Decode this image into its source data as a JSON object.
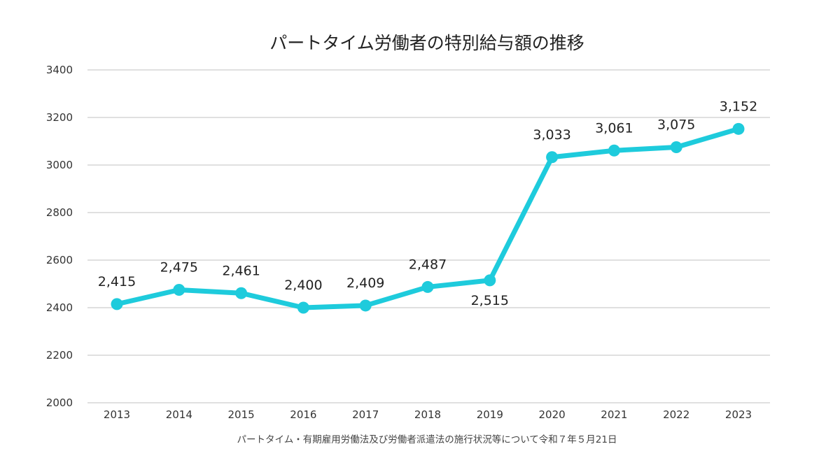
{
  "colors": {
    "line": "#1ecbdc",
    "grid": "#d6d6d6",
    "text": "#222222"
  },
  "chart_data": {
    "type": "line",
    "title": "パートタイム労働者の特別給与額の推移",
    "xlabel": "",
    "ylabel": "",
    "source": "パートタイム・有期雇用労働法及び労働者派遣法の施行状況等について令和７年５月21日",
    "categories": [
      "2013",
      "2014",
      "2015",
      "2016",
      "2017",
      "2018",
      "2019",
      "2020",
      "2021",
      "2022",
      "2023"
    ],
    "series": [
      {
        "name": "特別給与額",
        "values": [
          2415,
          2475,
          2461,
          2400,
          2409,
          2487,
          2515,
          3033,
          3061,
          3075,
          3152
        ],
        "labels": [
          "2,415",
          "2,475",
          "2,461",
          "2,400",
          "2,409",
          "2,487",
          "2,515",
          "3,033",
          "3,061",
          "3,075",
          "3,152"
        ]
      }
    ],
    "ylim": [
      2000,
      3400
    ],
    "yticks": [
      2000,
      2200,
      2400,
      2600,
      2800,
      3000,
      3200,
      3400
    ],
    "grid": true
  }
}
